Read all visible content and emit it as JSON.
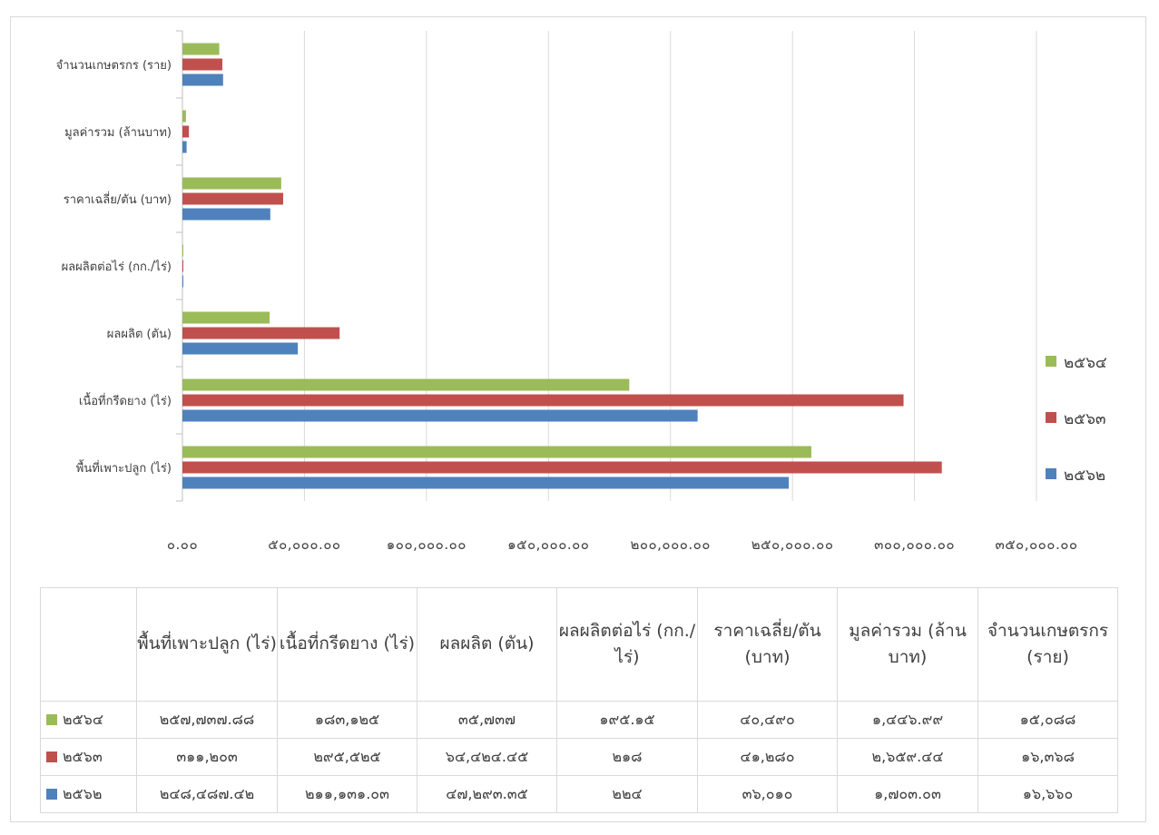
{
  "chart_data": {
    "type": "bar",
    "orientation": "horizontal",
    "categories": [
      "พื้นที่เพาะปลูก (ไร่)",
      "เนื้อที่กรีดยาง (ไร่)",
      "ผลผลิต (ตัน)",
      "ผลผลิตต่อไร่ (กก./ไร่)",
      "ราคาเฉลี่ย/ตัน (บาท)",
      "มูลค่ารวม (ล้านบาท)",
      "จำนวนเกษตรกร (ราย)"
    ],
    "series": [
      {
        "name": "๒๕๖๔",
        "color": "#9bbb59",
        "values": [
          257737.88,
          183125,
          35737,
          195.15,
          40490,
          1446.99,
          15088
        ],
        "display": [
          "๒๕๗,๗๓๗.๘๘",
          "๑๘๓,๑๒๕",
          "๓๕,๗๓๗",
          "๑๙๕.๑๕",
          "๔๐,๔๙๐",
          "๑,๔๔๖.๙๙",
          "๑๕,๐๘๘"
        ]
      },
      {
        "name": "๒๕๖๓",
        "color": "#c0504d",
        "values": [
          311203,
          295525,
          64424.45,
          218,
          41280,
          2659.44,
          16368
        ],
        "display": [
          "๓๑๑,๒๐๓",
          "๒๙๕,๕๒๕",
          "๖๔,๔๒๔.๔๕",
          "๒๑๘",
          "๔๑,๒๘๐",
          "๒,๖๕๙.๔๔",
          "๑๖,๓๖๘"
        ]
      },
      {
        "name": "๒๕๖๒",
        "color": "#4f81bd",
        "values": [
          248487.42,
          211131.03,
          47293.35,
          224,
          36010,
          1703.03,
          16660
        ],
        "display": [
          "๒๔๘,๔๘๗.๔๒",
          "๒๑๑,๑๓๑.๐๓",
          "๔๗,๒๙๓.๓๕",
          "๒๒๔",
          "๓๖,๐๑๐",
          "๑,๗๐๓.๐๓",
          "๑๖,๖๖๐"
        ]
      }
    ],
    "xlim": [
      0,
      350000
    ],
    "x_ticks": [
      0,
      50000,
      100000,
      150000,
      200000,
      250000,
      300000,
      350000
    ],
    "x_tick_labels": [
      "๐.๐๐",
      "๕๐,๐๐๐.๐๐",
      "๑๐๐,๐๐๐.๐๐",
      "๑๕๐,๐๐๐.๐๐",
      "๒๐๐,๐๐๐.๐๐",
      "๒๕๐,๐๐๐.๐๐",
      "๓๐๐,๐๐๐.๐๐",
      "๓๕๐,๐๐๐.๐๐"
    ],
    "grid": true,
    "legend_position": "right",
    "data_table": true,
    "table_headers": [
      "พื้นที่เพาะปลูก (ไร่)",
      "เนื้อที่กรีดยาง (ไร่)",
      "ผลผลิต (ตัน)",
      "ผลผลิตต่อไร่ (กก./ไร่)",
      "ราคาเฉลี่ย/ตัน (บาท)",
      "มูลค่ารวม (ล้านบาท)",
      "จำนวนเกษตรกร (ราย)"
    ]
  }
}
